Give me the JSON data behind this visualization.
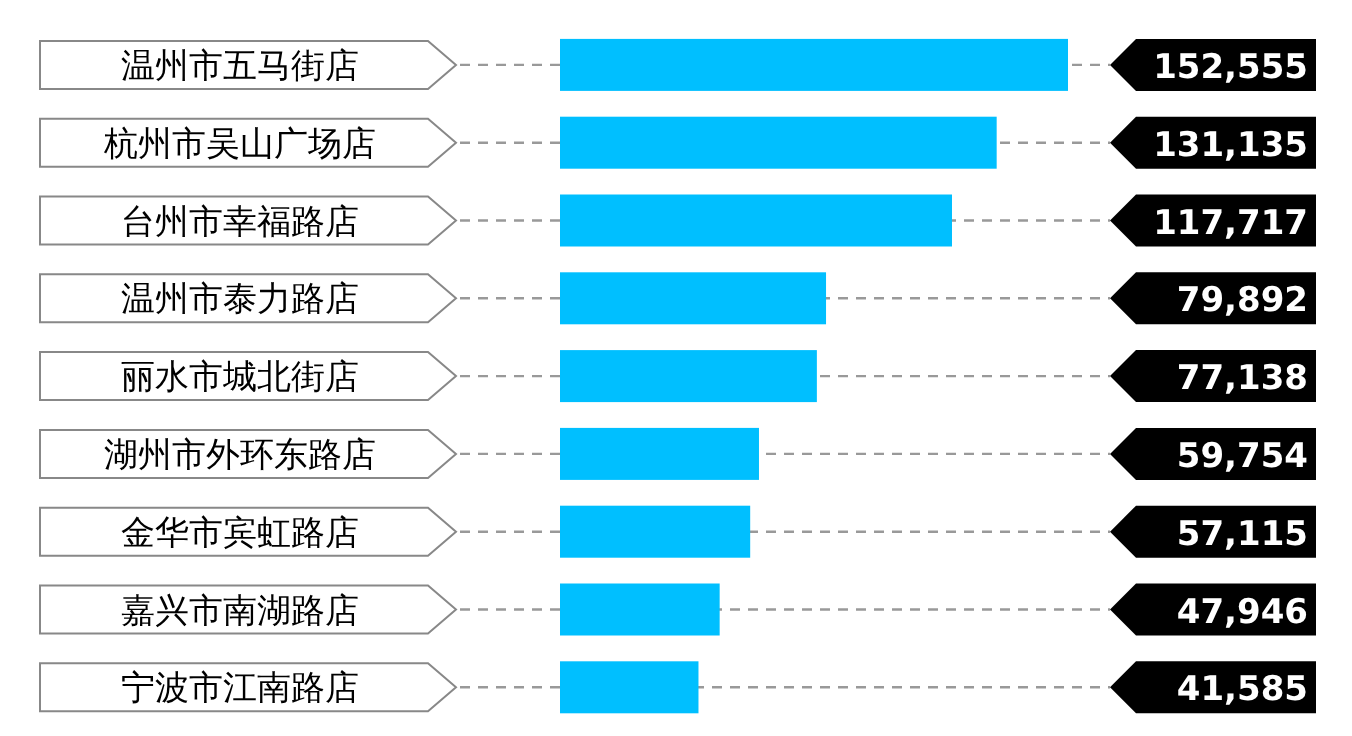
{
  "chart_data": {
    "type": "bar",
    "orientation": "horizontal",
    "categories": [
      "温州市五马街店",
      "杭州市吴山广场店",
      "台州市幸福路店",
      "温州市泰力路店",
      "丽水市城北街店",
      "湖州市外环东路店",
      "金华市宾虹路店",
      "嘉兴市南湖路店",
      "宁波市江南路店"
    ],
    "values": [
      152555,
      131135,
      117717,
      79892,
      77138,
      59754,
      57115,
      47946,
      41585
    ],
    "value_labels": [
      "152,555",
      "131,135",
      "117,717",
      "79,892",
      "77,138",
      "59,754",
      "57,115",
      "47,946",
      "41,585"
    ],
    "color": "#00bfff"
  }
}
